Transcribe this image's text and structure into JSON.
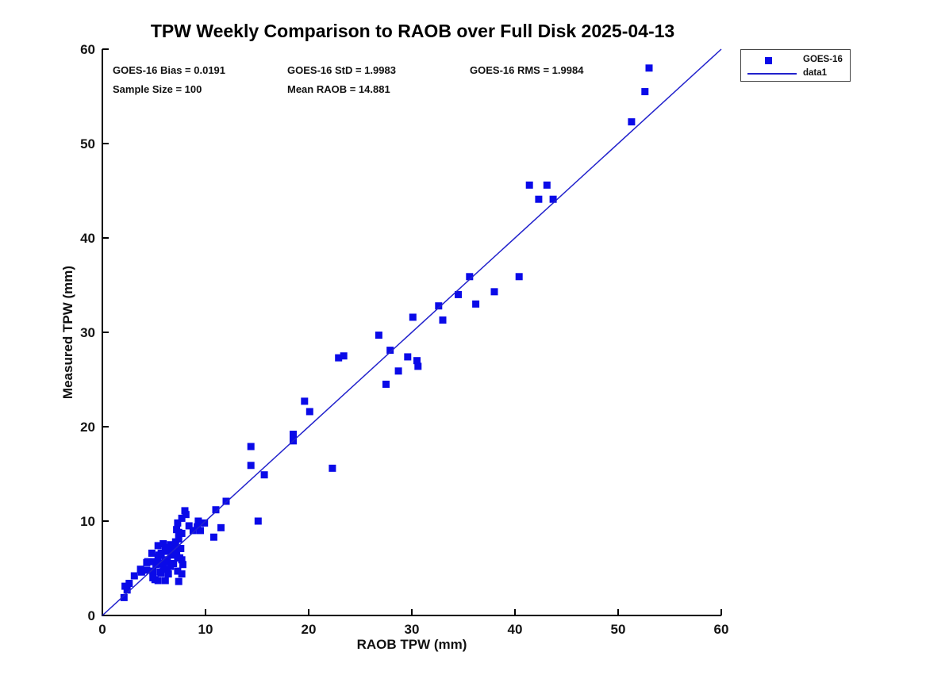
{
  "title": "TPW Weekly Comparison to RAOB over Full Disk 2025-04-13",
  "stats": {
    "bias": "GOES-16 Bias = 0.0191",
    "std": "GOES-16 StD = 1.9983",
    "rms": "GOES-16 RMS = 1.9984",
    "sample_size": "Sample Size = 100",
    "mean_raob": "Mean RAOB = 14.881"
  },
  "legend": {
    "entries": [
      {
        "label": "GOES-16",
        "symbol": "square-marker"
      },
      {
        "label": "data1",
        "symbol": "line"
      }
    ]
  },
  "colors": {
    "marker": "#0a0ae8",
    "line": "#2222cc",
    "axis": "#000000",
    "text": "#111111",
    "background": "#ffffff"
  },
  "chart_data": {
    "type": "scatter",
    "title": "TPW Weekly Comparison to RAOB over Full Disk 2025-04-13",
    "xlabel": "RAOB TPW (mm)",
    "ylabel": "Measured TPW (mm)",
    "xlim": [
      0,
      60
    ],
    "ylim": [
      0,
      60
    ],
    "xticks": [
      0,
      10,
      20,
      30,
      40,
      50,
      60
    ],
    "yticks": [
      0,
      10,
      20,
      30,
      40,
      50,
      60
    ],
    "grid": false,
    "legend_position": "outside-top-right",
    "series": [
      {
        "name": "GOES-16",
        "type": "scatter",
        "marker": "square",
        "color": "#0a0ae8",
        "points": [
          [
            2.1,
            1.9
          ],
          [
            2.4,
            2.7
          ],
          [
            2.2,
            3.1
          ],
          [
            2.6,
            3.4
          ],
          [
            3.1,
            4.2
          ],
          [
            3.7,
            4.9
          ],
          [
            3.8,
            4.6
          ],
          [
            4.3,
            4.8
          ],
          [
            4.4,
            5.7
          ],
          [
            4.3,
            5.6
          ],
          [
            4.8,
            6.6
          ],
          [
            4.9,
            4.7
          ],
          [
            4.9,
            4.0
          ],
          [
            5.0,
            5.7
          ],
          [
            5.1,
            3.8
          ],
          [
            5.2,
            5.4
          ],
          [
            5.4,
            7.4
          ],
          [
            5.4,
            6.2
          ],
          [
            5.5,
            6.4
          ],
          [
            5.5,
            5.5
          ],
          [
            5.4,
            3.7
          ],
          [
            5.6,
            4.6
          ],
          [
            5.7,
            6.6
          ],
          [
            5.7,
            4.5
          ],
          [
            5.9,
            7.6
          ],
          [
            5.9,
            5.2
          ],
          [
            6.1,
            7.2
          ],
          [
            6.2,
            6.8
          ],
          [
            6.1,
            5.9
          ],
          [
            6.3,
            5.7
          ],
          [
            6.3,
            4.9
          ],
          [
            6.4,
            4.4
          ],
          [
            6.1,
            3.7
          ],
          [
            6.6,
            7.5
          ],
          [
            6.6,
            6.9
          ],
          [
            6.7,
            6.4
          ],
          [
            6.6,
            5.2
          ],
          [
            6.9,
            5.5
          ],
          [
            7.1,
            7.8
          ],
          [
            7.2,
            7.1
          ],
          [
            7.2,
            6.7
          ],
          [
            7.3,
            6.1
          ],
          [
            7.3,
            4.7
          ],
          [
            7.4,
            3.6
          ],
          [
            7.5,
            6.1
          ],
          [
            7.6,
            7.1
          ],
          [
            7.7,
            5.9
          ],
          [
            7.8,
            5.4
          ],
          [
            7.7,
            4.4
          ],
          [
            7.2,
            9.1
          ],
          [
            7.3,
            9.8
          ],
          [
            7.4,
            8.8
          ],
          [
            7.4,
            8.1
          ],
          [
            7.7,
            10.3
          ],
          [
            7.7,
            8.7
          ],
          [
            8.0,
            11.1
          ],
          [
            8.1,
            10.7
          ],
          [
            8.4,
            9.5
          ],
          [
            8.8,
            9.0
          ],
          [
            9.2,
            9.4
          ],
          [
            9.3,
            10.0
          ],
          [
            9.5,
            9.0
          ],
          [
            9.9,
            9.8
          ],
          [
            10.8,
            8.3
          ],
          [
            11.5,
            9.3
          ],
          [
            11.0,
            11.2
          ],
          [
            12.0,
            12.1
          ],
          [
            14.4,
            17.9
          ],
          [
            14.4,
            15.9
          ],
          [
            15.7,
            14.9
          ],
          [
            15.1,
            10.0
          ],
          [
            18.5,
            19.2
          ],
          [
            18.5,
            18.5
          ],
          [
            19.6,
            22.7
          ],
          [
            20.1,
            21.6
          ],
          [
            22.3,
            15.6
          ],
          [
            22.9,
            27.3
          ],
          [
            23.4,
            27.5
          ],
          [
            26.8,
            29.7
          ],
          [
            27.5,
            24.5
          ],
          [
            27.9,
            28.1
          ],
          [
            28.7,
            25.9
          ],
          [
            29.6,
            27.4
          ],
          [
            30.1,
            31.6
          ],
          [
            30.5,
            27.0
          ],
          [
            30.6,
            26.4
          ],
          [
            32.6,
            32.8
          ],
          [
            33.0,
            31.3
          ],
          [
            34.5,
            34.0
          ],
          [
            35.6,
            35.9
          ],
          [
            36.2,
            33.0
          ],
          [
            38.0,
            34.3
          ],
          [
            40.4,
            35.9
          ],
          [
            41.4,
            45.6
          ],
          [
            43.1,
            45.6
          ],
          [
            42.3,
            44.1
          ],
          [
            43.7,
            44.1
          ],
          [
            51.3,
            52.3
          ],
          [
            52.6,
            55.5
          ],
          [
            53.0,
            58.0
          ]
        ]
      },
      {
        "name": "data1",
        "type": "line",
        "color": "#2222cc",
        "points": [
          [
            0,
            0
          ],
          [
            60,
            60
          ]
        ]
      }
    ]
  }
}
